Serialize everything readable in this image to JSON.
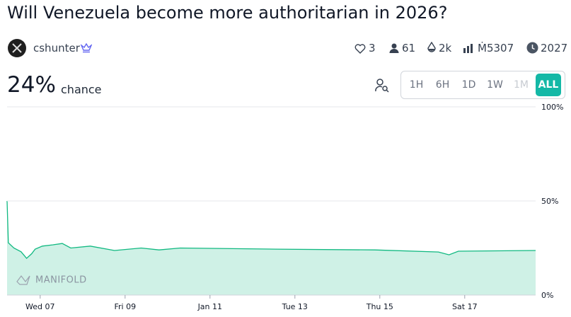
{
  "title": "Will Venezuela become more authoritarian in 2026?",
  "author": "cshunter",
  "stats": {
    "likes": "3",
    "traders": "61",
    "liquidity": "2k",
    "volume": "Ṁ5307",
    "close": "2027"
  },
  "probability": "24%",
  "probability_label": "chance",
  "time_buttons": [
    "1H",
    "6H",
    "1D",
    "1W",
    "1M",
    "ALL"
  ],
  "watermark": "MANIFOLD",
  "chart_data": {
    "type": "line",
    "x": [
      6.22,
      6.25,
      6.38,
      6.55,
      6.68,
      6.8,
      6.88,
      7.05,
      7.3,
      7.52,
      7.72,
      8.18,
      8.75,
      9.38,
      9.8,
      10.3,
      12.55,
      14.88,
      16.38,
      16.63,
      16.85,
      18.67
    ],
    "values": [
      50,
      27.8,
      25,
      23,
      19.5,
      22,
      24.4,
      26,
      26.7,
      27.4,
      25,
      26,
      23.7,
      25,
      24,
      25,
      24.4,
      24,
      22.9,
      21.4,
      23.3,
      23.7
    ],
    "color": "#11b981",
    "xlim": [
      6.22,
      18.67
    ],
    "xticks": [
      {
        "value": 7,
        "label": "Wed 07"
      },
      {
        "value": 9,
        "label": "Fri 09"
      },
      {
        "value": 11,
        "label": "Jan 11"
      },
      {
        "value": 13,
        "label": "Tue 13"
      },
      {
        "value": 15,
        "label": "Thu 15"
      },
      {
        "value": 17,
        "label": "Sat 17"
      }
    ],
    "ylim": [
      0,
      100
    ],
    "yticks": [
      {
        "value": 0,
        "label": "0%"
      },
      {
        "value": 50,
        "label": "50%"
      },
      {
        "value": 100,
        "label": "100%"
      }
    ],
    "grid": true
  }
}
